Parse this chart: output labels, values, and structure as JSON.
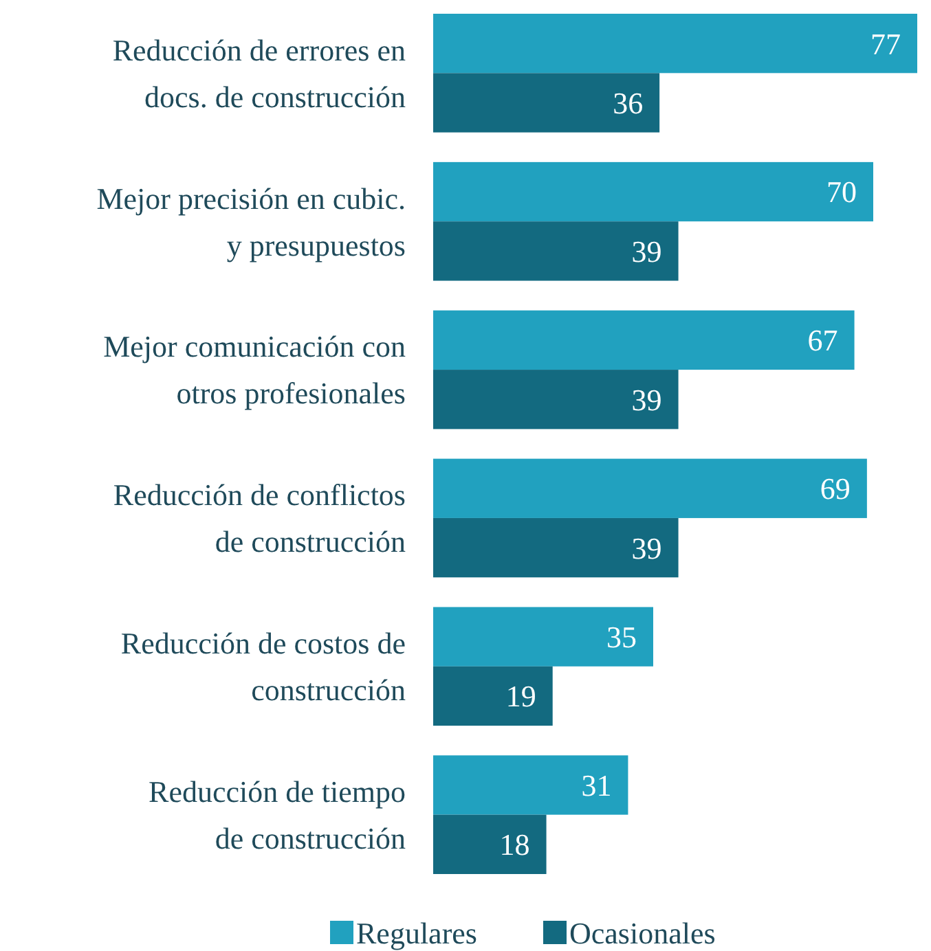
{
  "chart_data": {
    "type": "bar",
    "orientation": "horizontal",
    "data_labels": true,
    "legend": "bottom",
    "categories": [
      "Reducción de errores en\ndocs. de construcción",
      "Mejor precisión en cubic.\ny presupuestos",
      "Mejor comunicación con\notros profesionales",
      "Reducción de conflictos\nde construcción",
      "Reducción de costos de\nconstrucción",
      "Reducción de tiempo\nde construcción"
    ],
    "series": [
      {
        "name": "Regulares",
        "color": "#21a1bf",
        "values": [
          77,
          70,
          67,
          69,
          35,
          31
        ]
      },
      {
        "name": "Ocasionales",
        "color": "#136a80",
        "values": [
          36,
          39,
          39,
          39,
          19,
          18
        ]
      }
    ]
  }
}
